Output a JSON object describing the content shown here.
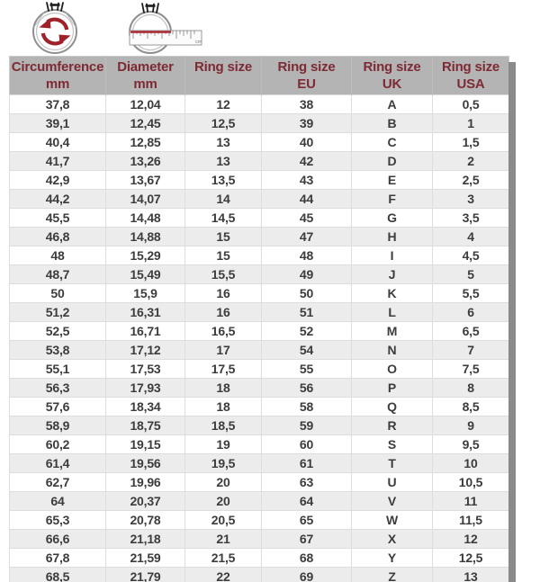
{
  "icons": {
    "circumference_icon": "ring-with-rotation-arrows-icon",
    "diameter_icon": "ring-with-ruler-icon",
    "ruler_unit": "cm"
  },
  "colors": {
    "header_bg": "#b4b4b4",
    "header_text": "#7e2a34",
    "row_bg": "#ffffff",
    "row_alt_bg": "#ececec",
    "cell_text": "#3c3c3c",
    "grid_border": "#dddddd",
    "outer_border": "#c9c9c9",
    "shadow": "#8a8a8a",
    "accent_red": "#9f2129",
    "ruler_red": "#b02730",
    "icon_outline": "#8f8f8f"
  },
  "table": {
    "headers": [
      {
        "line1": "Circumference",
        "line2": "mm"
      },
      {
        "line1": "Diameter",
        "line2": "mm"
      },
      {
        "line1": "Ring size",
        "line2": ""
      },
      {
        "line1": "Ring size",
        "line2": "EU"
      },
      {
        "line1": "Ring size",
        "line2": "UK"
      },
      {
        "line1": "Ring size",
        "line2": "USA"
      }
    ]
  },
  "chart_data": {
    "type": "table",
    "columns": [
      "Circumference mm",
      "Diameter mm",
      "Ring size",
      "Ring size EU",
      "Ring size UK",
      "Ring size USA"
    ],
    "rows": [
      [
        "37,8",
        "12,04",
        "12",
        "38",
        "A",
        "0,5"
      ],
      [
        "39,1",
        "12,45",
        "12,5",
        "39",
        "B",
        "1"
      ],
      [
        "40,4",
        "12,85",
        "13",
        "40",
        "C",
        "1,5"
      ],
      [
        "41,7",
        "13,26",
        "13",
        "42",
        "D",
        "2"
      ],
      [
        "42,9",
        "13,67",
        "13,5",
        "43",
        "E",
        "2,5"
      ],
      [
        "44,2",
        "14,07",
        "14",
        "44",
        "F",
        "3"
      ],
      [
        "45,5",
        "14,48",
        "14,5",
        "45",
        "G",
        "3,5"
      ],
      [
        "46,8",
        "14,88",
        "15",
        "47",
        "H",
        "4"
      ],
      [
        "48",
        "15,29",
        "15",
        "48",
        "I",
        "4,5"
      ],
      [
        "48,7",
        "15,49",
        "15,5",
        "49",
        "J",
        "5"
      ],
      [
        "50",
        "15,9",
        "16",
        "50",
        "K",
        "5,5"
      ],
      [
        "51,2",
        "16,31",
        "16",
        "51",
        "L",
        "6"
      ],
      [
        "52,5",
        "16,71",
        "16,5",
        "52",
        "M",
        "6,5"
      ],
      [
        "53,8",
        "17,12",
        "17",
        "54",
        "N",
        "7"
      ],
      [
        "55,1",
        "17,53",
        "17,5",
        "55",
        "O",
        "7,5"
      ],
      [
        "56,3",
        "17,93",
        "18",
        "56",
        "P",
        "8"
      ],
      [
        "57,6",
        "18,34",
        "18",
        "58",
        "Q",
        "8,5"
      ],
      [
        "58,9",
        "18,75",
        "18,5",
        "59",
        "R",
        "9"
      ],
      [
        "60,2",
        "19,15",
        "19",
        "60",
        "S",
        "9,5"
      ],
      [
        "61,4",
        "19,56",
        "19,5",
        "61",
        "T",
        "10"
      ],
      [
        "62,7",
        "19,96",
        "20",
        "63",
        "U",
        "10,5"
      ],
      [
        "64",
        "20,37",
        "20",
        "64",
        "V",
        "11"
      ],
      [
        "65,3",
        "20,78",
        "20,5",
        "65",
        "W",
        "11,5"
      ],
      [
        "66,6",
        "21,18",
        "21",
        "67",
        "X",
        "12"
      ],
      [
        "67,8",
        "21,59",
        "21,5",
        "68",
        "Y",
        "12,5"
      ],
      [
        "68,5",
        "21,79",
        "22",
        "69",
        "Z",
        "13"
      ]
    ]
  }
}
